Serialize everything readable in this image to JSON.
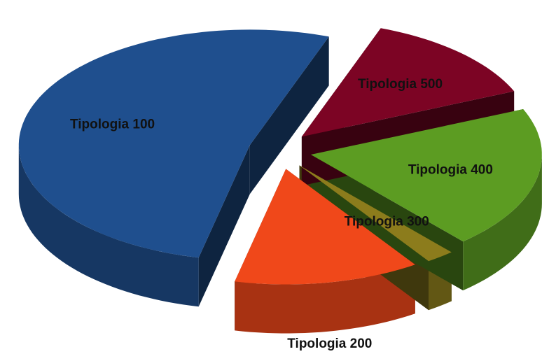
{
  "chart_data": {
    "type": "pie",
    "categories": [
      "Tipologia 100",
      "Tipologia 200",
      "Tipologia 300",
      "Tipologia 400",
      "Tipologia 500"
    ],
    "values": [
      52,
      13,
      2,
      20,
      13
    ],
    "colors": [
      "#1f4f8e",
      "#f0481a",
      "#8c7c1c",
      "#5c9c22",
      "#7c0424"
    ]
  }
}
